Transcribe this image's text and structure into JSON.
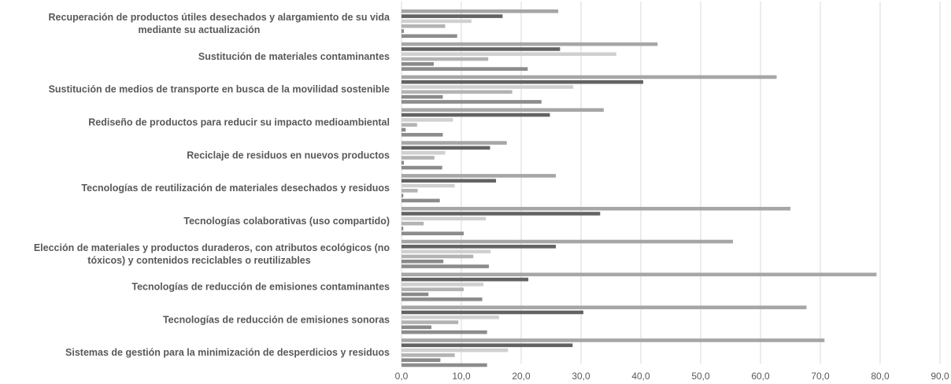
{
  "chart_data": {
    "type": "bar",
    "orientation": "horizontal",
    "title": "",
    "xlabel": "",
    "ylabel": "",
    "xlim": [
      0,
      90
    ],
    "ticks": [
      "0,0",
      "10,0",
      "20,0",
      "30,0",
      "40,0",
      "50,0",
      "60,0",
      "70,0",
      "80,0",
      "90,0"
    ],
    "grid": true,
    "legend": "none",
    "categories": [
      [
        "Recuperación de productos útiles desechados y alargamiento de su vida",
        "mediante su actualización"
      ],
      [
        "Sustitución de materiales contaminantes"
      ],
      [
        "Sustitución de medios de transporte en busca de la movilidad sostenible"
      ],
      [
        "Rediseño de productos para reducir su impacto medioambiental"
      ],
      [
        "Reciclaje de residuos en nuevos productos"
      ],
      [
        "Tecnologías de reutilización de materiales desechados y residuos"
      ],
      [
        "Tecnologías colaborativas (uso compartido)"
      ],
      [
        "Elección de materiales y productos duraderos, con atributos ecológicos (no",
        "tóxicos) y contenidos reciclables o reutilizables"
      ],
      [
        "Tecnologías de reducción de emisiones contaminantes"
      ],
      [
        "Tecnologías de reducción de emisiones sonoras"
      ],
      [
        "Sistemas de gestión para la minimización de desperdicios y residuos"
      ]
    ],
    "series": [
      {
        "color": "#a6a6a6",
        "values": [
          26.2,
          42.8,
          62.7,
          33.8,
          17.6,
          25.8,
          65.0,
          55.4,
          79.4,
          67.7,
          70.7
        ]
      },
      {
        "color": "#636363",
        "values": [
          16.9,
          26.5,
          40.4,
          24.8,
          14.8,
          15.8,
          33.2,
          25.8,
          21.2,
          30.4,
          28.6
        ]
      },
      {
        "color": "#d0d0d0",
        "values": [
          11.7,
          35.9,
          28.7,
          8.6,
          7.3,
          8.9,
          14.1,
          14.9,
          13.7,
          16.3,
          17.8
        ]
      },
      {
        "color": "#b3b3b3",
        "values": [
          7.3,
          14.5,
          18.5,
          2.6,
          5.5,
          2.7,
          3.7,
          12.0,
          10.4,
          9.5,
          8.9
        ]
      },
      {
        "color": "#8a8a8a",
        "values": [
          0.4,
          5.4,
          6.9,
          0.7,
          0.4,
          0.3,
          0.3,
          7.0,
          4.5,
          5.0,
          6.5
        ]
      },
      {
        "color": "#8c8c8c",
        "values": [
          9.3,
          21.1,
          23.4,
          6.9,
          6.8,
          6.4,
          10.4,
          14.6,
          13.5,
          14.3,
          14.3
        ]
      }
    ]
  }
}
